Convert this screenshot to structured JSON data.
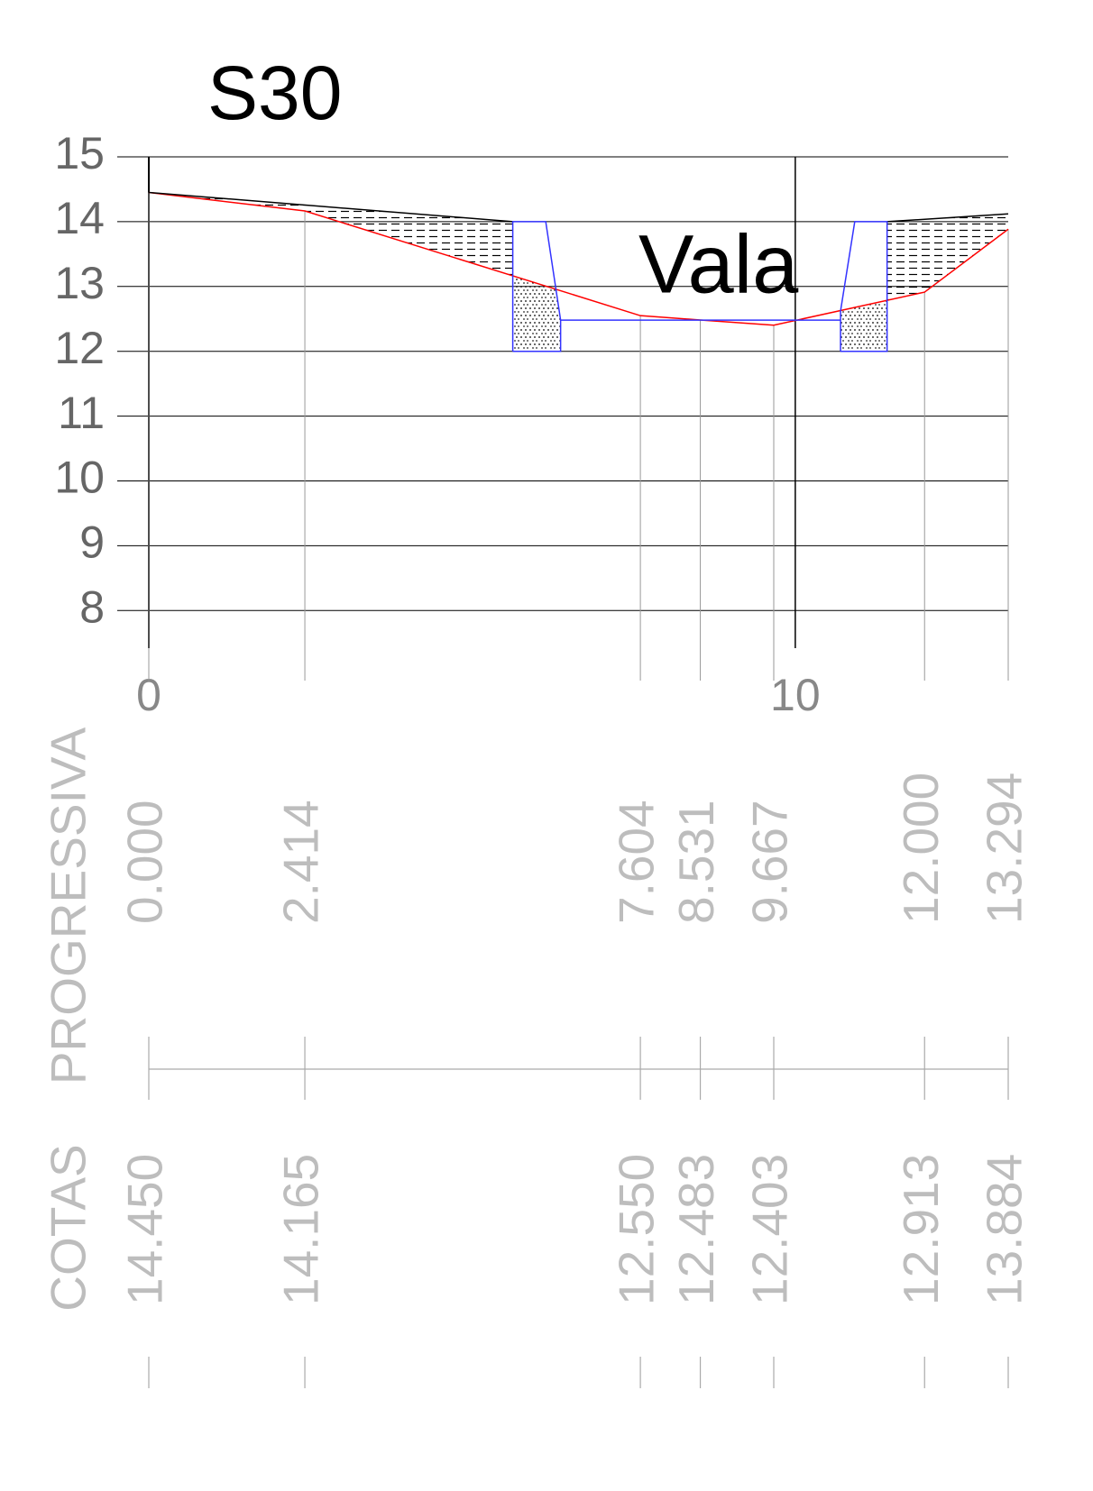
{
  "chart_data": {
    "type": "line",
    "title": "S30",
    "annotation": "Vala",
    "x_row_label": "PROGRESSIVA",
    "y_row_label": "COTAS",
    "xlim": [
      0,
      13.294
    ],
    "ylim": [
      7.42,
      15
    ],
    "xticks": [
      0,
      10
    ],
    "yticks": [
      8,
      9,
      10,
      11,
      12,
      13,
      14,
      15
    ],
    "grid": true,
    "series": [
      {
        "color": "#ff0000",
        "x": [
          0,
          2.414,
          7.604,
          8.531,
          9.667,
          12,
          13.294
        ],
        "x_labels": [
          "0.000",
          "2.414",
          "7.604",
          "8.531",
          "9.667",
          "12.000",
          "13.294"
        ],
        "values": [
          14.45,
          14.165,
          12.55,
          12.483,
          12.403,
          12.913,
          13.884
        ],
        "value_labels": [
          "14.450",
          "14.165",
          "12.550",
          "12.483",
          "12.403",
          "12.913",
          "13.884"
        ]
      },
      {
        "color": "#000000",
        "x": [
          0,
          5.63
        ],
        "values": [
          14.45,
          14
        ]
      },
      {
        "color": "#000000",
        "x": [
          11.42,
          13.294
        ],
        "values": [
          14,
          14.12
        ]
      },
      {
        "color": "#3333ff",
        "x": [
          5.63,
          5.63,
          6.14,
          6.37,
          6.37,
          5.63
        ],
        "values": [
          12,
          14,
          14,
          12.48,
          12,
          12
        ]
      },
      {
        "color": "#3333ff",
        "x": [
          6.37,
          10.7
        ],
        "values": [
          12.48,
          12.48
        ]
      },
      {
        "color": "#3333ff",
        "x": [
          10.7,
          10.7,
          10.92,
          11.42,
          11.42,
          10.7
        ],
        "values": [
          12,
          12.62,
          14,
          14,
          12,
          12
        ]
      }
    ]
  }
}
